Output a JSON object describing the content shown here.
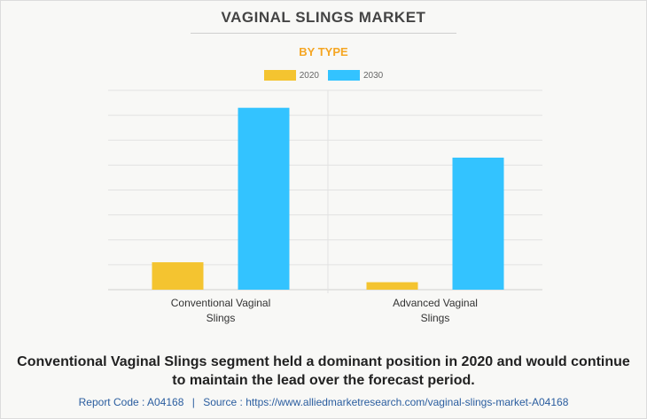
{
  "header": {
    "title": "VAGINAL SLINGS MARKET",
    "subtitle": "BY TYPE"
  },
  "legend": {
    "items": [
      {
        "label": "2020",
        "color": "#f4c430"
      },
      {
        "label": "2030",
        "color": "#33c3ff"
      }
    ]
  },
  "chart_data": {
    "type": "bar",
    "categories": [
      "Conventional Vaginal Slings",
      "Advanced Vaginal Slings"
    ],
    "category_label_lines": [
      [
        "Conventional Vaginal",
        "Slings"
      ],
      [
        "Advanced Vaginal",
        "Slings"
      ]
    ],
    "series": [
      {
        "name": "2020",
        "values": [
          1.1,
          0.3
        ]
      },
      {
        "name": "2030",
        "values": [
          7.3,
          5.3
        ]
      }
    ],
    "ylim": [
      0,
      8
    ],
    "grid": true,
    "legend_position": "top-center",
    "colors": {
      "2020": "#f4c430",
      "2030": "#33c3ff",
      "grid": "#e2e2e2",
      "axis": "#cfcfcf"
    }
  },
  "caption": "Conventional Vaginal Slings segment held a dominant position in 2020 and would continue to maintain the lead over the forecast period.",
  "footer": {
    "report_code": "Report Code : A04168",
    "separator": "|",
    "source": "Source : https://www.alliedmarketresearch.com/vaginal-slings-market-A04168"
  }
}
